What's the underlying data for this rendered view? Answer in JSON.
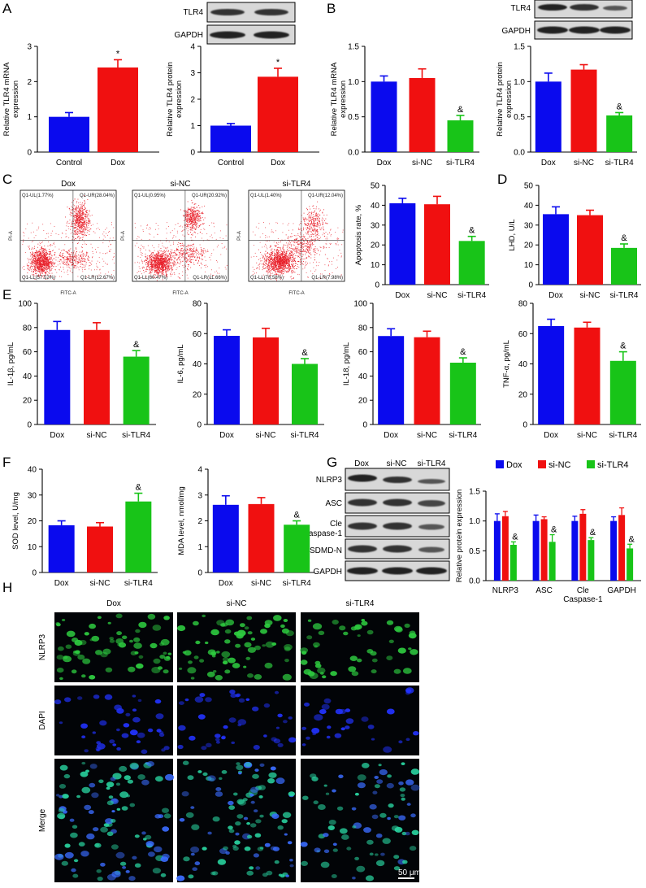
{
  "panel_letters": [
    "A",
    "B",
    "C",
    "D",
    "E",
    "F",
    "G",
    "H"
  ],
  "colors": {
    "blue": "#0a0aee",
    "red": "#f01010",
    "green": "#18c418"
  },
  "blots": {
    "A": [
      "TLR4",
      "GAPDH"
    ],
    "B": [
      "TLR4",
      "GAPDH"
    ],
    "G": [
      "NLRP3",
      "ASC",
      "Cle Caspase-1",
      "GSDMD-N",
      "GAPDH"
    ],
    "G_columns": [
      "Dox",
      "si-NC",
      "si-TLR4"
    ]
  },
  "flow": {
    "titles": [
      "Dox",
      "si-NC",
      "si-TLR4"
    ],
    "xaxis": "FITC-A",
    "yaxis": "PI-A",
    "quadrants": [
      {
        "ul": "Q1-UL(1.77%)",
        "ur": "Q1-UR(28.04%)",
        "ll": "Q1-LL(57.52%)",
        "lr": "Q1-LR(12.67%)"
      },
      {
        "ul": "Q1-UL(0.95%)",
        "ur": "Q1-UR(20.92%)",
        "ll": "Q1-LL(60.47%)",
        "lr": "Q1-LR(11.66%)"
      },
      {
        "ul": "Q1-UL(1.40%)",
        "ur": "Q1-UR(12.04%)",
        "ll": "Q1-LL(78.58%)",
        "lr": "Q1-LR(7.98%)"
      }
    ]
  },
  "micro": {
    "columns": [
      "Dox",
      "si-NC",
      "si-TLR4"
    ],
    "rows": [
      "NLRP3",
      "DAPI",
      "Merge"
    ],
    "scale_bar": "50 μm"
  },
  "chart_data": [
    {
      "id": "A1",
      "type": "bar",
      "categories": [
        "Control",
        "Dox"
      ],
      "values": [
        1.0,
        2.4
      ],
      "errors": [
        0.12,
        0.22
      ],
      "ylabel": "Relative TLR4 mRNA expression",
      "ylim": [
        0,
        3
      ],
      "yticks": [
        0,
        1,
        2,
        3
      ],
      "annotations": [
        "",
        "*"
      ]
    },
    {
      "id": "A2",
      "type": "bar",
      "categories": [
        "Control",
        "Dox"
      ],
      "values": [
        1.0,
        2.85
      ],
      "errors": [
        0.08,
        0.32
      ],
      "ylabel": "Relative TLR4 protein expression",
      "ylim": [
        0,
        4
      ],
      "yticks": [
        0,
        1,
        2,
        3,
        4
      ],
      "annotations": [
        "",
        "*"
      ]
    },
    {
      "id": "B1",
      "type": "bar",
      "categories": [
        "Dox",
        "si-NC",
        "si-TLR4"
      ],
      "values": [
        1.0,
        1.05,
        0.45
      ],
      "errors": [
        0.08,
        0.13,
        0.07
      ],
      "ylabel": "Relative TLR4 mRNA expression",
      "ylim": [
        0,
        1.5
      ],
      "yticks": [
        0.0,
        0.5,
        1.0,
        1.5
      ],
      "annotations": [
        "",
        "",
        "&"
      ]
    },
    {
      "id": "B2",
      "type": "bar",
      "categories": [
        "Dox",
        "si-NC",
        "si-TLR4"
      ],
      "values": [
        1.0,
        1.17,
        0.52
      ],
      "errors": [
        0.12,
        0.07,
        0.04
      ],
      "ylabel": "Relative TLR4 protein expression",
      "ylim": [
        0,
        1.5
      ],
      "yticks": [
        0.0,
        0.5,
        1.0,
        1.5
      ],
      "annotations": [
        "",
        "",
        "&"
      ]
    },
    {
      "id": "C1",
      "type": "bar",
      "categories": [
        "Dox",
        "si-NC",
        "si-TLR4"
      ],
      "values": [
        41,
        40.5,
        22
      ],
      "errors": [
        2.5,
        4,
        2.3
      ],
      "ylabel": "Apoptosis rate, %",
      "ylim": [
        0,
        50
      ],
      "yticks": [
        0,
        10,
        20,
        30,
        40,
        50
      ],
      "annotations": [
        "",
        "",
        "&"
      ]
    },
    {
      "id": "D1",
      "type": "bar",
      "categories": [
        "Dox",
        "si-NC",
        "si-TLR4"
      ],
      "values": [
        35.5,
        35,
        18.5
      ],
      "errors": [
        3.7,
        2.5,
        2
      ],
      "ylabel": "LHD, U/L",
      "ylim": [
        0,
        50
      ],
      "yticks": [
        0,
        10,
        20,
        30,
        40,
        50
      ],
      "annotations": [
        "",
        "",
        "&"
      ]
    },
    {
      "id": "E1",
      "type": "bar",
      "categories": [
        "Dox",
        "si-NC",
        "si-TLR4"
      ],
      "values": [
        78,
        78,
        56
      ],
      "errors": [
        7,
        6,
        5
      ],
      "ylabel": "IL-1β, pg/mL",
      "ylim": [
        0,
        100
      ],
      "yticks": [
        0,
        20,
        40,
        60,
        80,
        100
      ],
      "annotations": [
        "",
        "",
        "&"
      ]
    },
    {
      "id": "E2",
      "type": "bar",
      "categories": [
        "Dox",
        "si-NC",
        "si-TLR4"
      ],
      "values": [
        58.5,
        57.5,
        40
      ],
      "errors": [
        4,
        6,
        3.5
      ],
      "ylabel": "IL-6, pg/mL",
      "ylim": [
        0,
        80
      ],
      "yticks": [
        0,
        20,
        40,
        60,
        80
      ],
      "annotations": [
        "",
        "",
        "&"
      ]
    },
    {
      "id": "E3",
      "type": "bar",
      "categories": [
        "Dox",
        "si-NC",
        "si-TLR4"
      ],
      "values": [
        73,
        72,
        51
      ],
      "errors": [
        6,
        5,
        4
      ],
      "ylabel": "IL-18, pg/mL",
      "ylim": [
        0,
        100
      ],
      "yticks": [
        0,
        20,
        40,
        60,
        80,
        100
      ],
      "annotations": [
        "",
        "",
        "&"
      ]
    },
    {
      "id": "E4",
      "type": "bar",
      "categories": [
        "Dox",
        "si-NC",
        "si-TLR4"
      ],
      "values": [
        65,
        64,
        42
      ],
      "errors": [
        4.5,
        3.5,
        6
      ],
      "ylabel": "TNF-α, pg/mL",
      "ylim": [
        0,
        80
      ],
      "yticks": [
        0,
        20,
        40,
        60,
        80
      ],
      "annotations": [
        "",
        "",
        "&"
      ]
    },
    {
      "id": "F1",
      "type": "bar",
      "categories": [
        "Dox",
        "si-NC",
        "si-TLR4"
      ],
      "values": [
        18.3,
        17.8,
        27.5
      ],
      "errors": [
        1.7,
        1.5,
        3.2
      ],
      "ylabel": "SOD level, U/mg",
      "ylim": [
        0,
        40
      ],
      "yticks": [
        0,
        10,
        20,
        30,
        40
      ],
      "annotations": [
        "",
        "",
        "&"
      ]
    },
    {
      "id": "F2",
      "type": "bar",
      "categories": [
        "Dox",
        "si-NC",
        "si-TLR4"
      ],
      "values": [
        2.62,
        2.65,
        1.85
      ],
      "errors": [
        0.35,
        0.25,
        0.15
      ],
      "ylabel": "MDA level, nmol/mg",
      "ylim": [
        0,
        4
      ],
      "yticks": [
        0,
        1,
        2,
        3,
        4
      ],
      "annotations": [
        "",
        "",
        "&"
      ]
    },
    {
      "id": "G1",
      "type": "grouped_bar",
      "categories": [
        "NLRP3",
        "ASC",
        "Cle Caspase-1",
        "GAPDH"
      ],
      "series": [
        {
          "name": "Dox",
          "values": [
            1.0,
            1.0,
            1.0,
            1.0
          ],
          "errors": [
            0.12,
            0.1,
            0.08,
            0.07
          ]
        },
        {
          "name": "si-NC",
          "values": [
            1.08,
            1.03,
            1.12,
            1.1
          ],
          "errors": [
            0.08,
            0.04,
            0.07,
            0.12
          ]
        },
        {
          "name": "si-TLR4",
          "values": [
            0.6,
            0.65,
            0.68,
            0.54
          ],
          "errors": [
            0.05,
            0.12,
            0.04,
            0.07
          ]
        }
      ],
      "ylabel": "Relative protein expression",
      "ylim": [
        0,
        1.5
      ],
      "yticks": [
        0.0,
        0.5,
        1.0,
        1.5
      ],
      "legend": "top",
      "annotations": [
        "&",
        "&",
        "&",
        "&"
      ]
    }
  ]
}
